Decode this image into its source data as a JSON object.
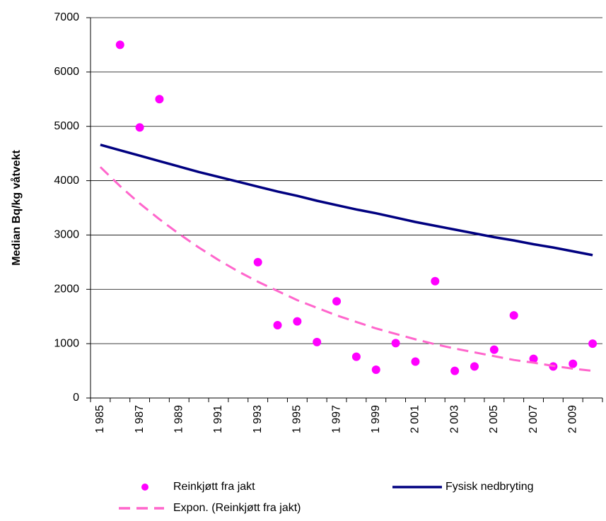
{
  "chart_data": {
    "type": "line",
    "y_label": "Median Bq/kg våtvekt",
    "categories": [
      "1 985",
      null,
      "1 987",
      null,
      "1 989",
      null,
      "1 991",
      null,
      "1 993",
      null,
      "1 995",
      null,
      "1 997",
      null,
      "1 999",
      null,
      "2 001",
      null,
      "2 003",
      null,
      "2 005",
      null,
      "2 007",
      null,
      "2 009",
      null
    ],
    "ylim": [
      0,
      7000
    ],
    "yticks": [
      0,
      1000,
      2000,
      3000,
      4000,
      5000,
      6000,
      7000
    ],
    "grid": true,
    "series": [
      {
        "name": "Reinkjøtt fra jakt",
        "color": "#ff00ff",
        "style": "dots",
        "values": [
          null,
          6500,
          4980,
          5500,
          null,
          null,
          null,
          null,
          2500,
          1340,
          1410,
          1030,
          1780,
          760,
          520,
          1010,
          670,
          2150,
          500,
          580,
          890,
          1520,
          720,
          580,
          630,
          1000
        ]
      },
      {
        "name": "Fysisk nedbryting",
        "color": "#000080",
        "style": "solid",
        "values": [
          4660,
          4560,
          4460,
          4360,
          4260,
          4160,
          4070,
          3980,
          3890,
          3800,
          3720,
          3630,
          3550,
          3470,
          3400,
          3320,
          3240,
          3170,
          3100,
          3030,
          2960,
          2900,
          2830,
          2770,
          2700,
          2630
        ]
      },
      {
        "name": "Expon. (Reinkjøtt fra jakt)",
        "color": "#ff66cc",
        "style": "dashed",
        "values": [
          4250,
          3900,
          3580,
          3290,
          3020,
          2770,
          2540,
          2330,
          2140,
          1970,
          1800,
          1660,
          1520,
          1400,
          1280,
          1180,
          1080,
          990,
          910,
          840,
          770,
          700,
          650,
          590,
          540,
          500
        ]
      }
    ]
  }
}
